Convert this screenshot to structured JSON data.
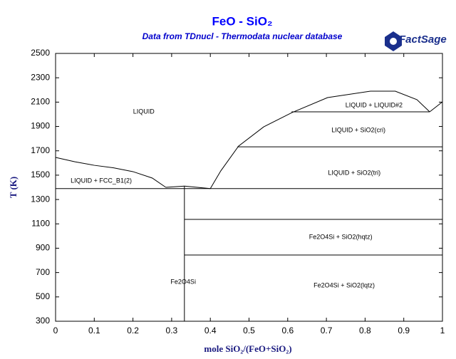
{
  "chart_data": {
    "type": "line",
    "title": "FeO - SiO₂",
    "subtitle": "Data from TDnucl - Thermodata nuclear database",
    "logo": "FactSage",
    "xlabel": "mole SiO₂/(FeO+SiO₂)",
    "ylabel": "T (K)",
    "xlim": [
      0,
      1
    ],
    "ylim": [
      300,
      2500
    ],
    "xticks": [
      0,
      0.1,
      0.2,
      0.3,
      0.4,
      0.5,
      0.6,
      0.7,
      0.8,
      0.9,
      1
    ],
    "yticks": [
      300,
      500,
      700,
      900,
      1100,
      1300,
      1500,
      1700,
      1900,
      2100,
      2300,
      2500
    ],
    "series": [
      {
        "color": "#000000",
        "x": [
          0,
          0.05,
          0.1,
          0.15,
          0.2,
          0.25,
          0.285
        ],
        "values": [
          1646,
          1610,
          1581,
          1560,
          1529,
          1476,
          1400
        ]
      },
      {
        "color": "#000000",
        "x": [
          0.285,
          0.333,
          0.4
        ],
        "values": [
          1400,
          1410,
          1390
        ]
      },
      {
        "color": "#000000",
        "x": [
          0.4,
          0.427,
          0.473,
          0.538,
          0.611,
          0.703,
          0.814,
          0.878,
          0.934,
          0.967
        ],
        "values": [
          1390,
          1535,
          1739,
          1897,
          2014,
          2137,
          2190,
          2190,
          2120,
          2020
        ]
      },
      {
        "color": "#000000",
        "x": [
          0.967,
          1
        ],
        "values": [
          2020,
          2102
        ]
      },
      {
        "color": "#000000",
        "x": [
          0.61,
          0.967
        ],
        "values": [
          2020,
          2020
        ]
      },
      {
        "color": "#000000",
        "x": [
          0.47,
          1
        ],
        "values": [
          1733,
          1733
        ]
      },
      {
        "color": "#000000",
        "x": [
          0,
          1
        ],
        "values": [
          1390,
          1390
        ]
      },
      {
        "color": "#000000",
        "x": [
          0.333,
          1
        ],
        "values": [
          1137,
          1137
        ]
      },
      {
        "color": "#000000",
        "x": [
          0.333,
          1
        ],
        "values": [
          844,
          844
        ]
      },
      {
        "color": "#000000",
        "x": [
          0.333,
          0.333
        ],
        "values": [
          300,
          1410
        ]
      }
    ],
    "annotations": [
      {
        "text": "LIQUID",
        "x": 0.228,
        "y": 2020
      },
      {
        "text": "LIQUID + LIQUID#2",
        "x": 0.823,
        "y": 2073
      },
      {
        "text": "LIQUID + SiO2(cri)",
        "x": 0.783,
        "y": 1868
      },
      {
        "text": "LIQUID + SiO2(tri)",
        "x": 0.772,
        "y": 1517
      },
      {
        "text": "LIQUID + FCC_B1(2)",
        "x": 0.118,
        "y": 1453
      },
      {
        "text": "Fe2O4Si + SiO2(hqtz)",
        "x": 0.737,
        "y": 990
      },
      {
        "text": "Fe2O4Si",
        "x": 0.33,
        "y": 622
      },
      {
        "text": "Fe2O4Si + SiO2(lqtz)",
        "x": 0.746,
        "y": 592
      }
    ]
  }
}
